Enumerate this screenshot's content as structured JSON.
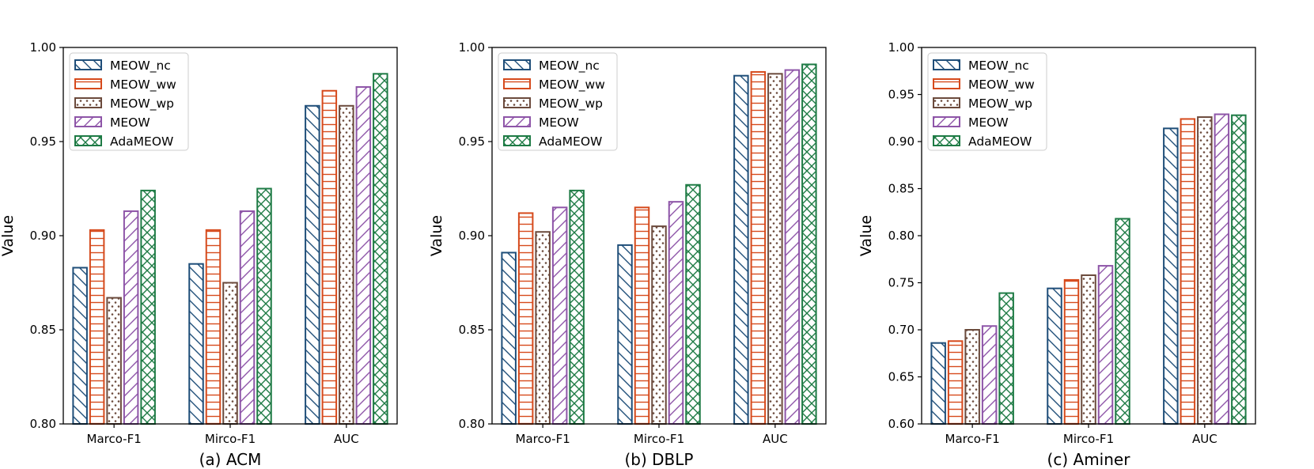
{
  "series_names": [
    "MEOW_nc",
    "MEOW_ww",
    "MEOW_wp",
    "MEOW",
    "AdaMEOW"
  ],
  "series_colors": [
    "#1f4e79",
    "#d64a1c",
    "#6b4a3c",
    "#8e55a8",
    "#1e7b45"
  ],
  "series_patterns": [
    "diag-back",
    "grid",
    "dots",
    "diag-fwd",
    "cross"
  ],
  "chart_data": [
    {
      "type": "bar",
      "title": "(a) ACM",
      "xlabel": "",
      "ylabel": "Value",
      "categories": [
        "Marco-F1",
        "Mirco-F1",
        "AUC"
      ],
      "ylim": [
        0.8,
        1.0
      ],
      "yticks": [
        "0.80",
        "0.85",
        "0.90",
        "0.95",
        "1.00"
      ],
      "ytick_values": [
        0.8,
        0.85,
        0.9,
        0.95,
        1.0
      ],
      "legend": "top-left",
      "series": [
        {
          "name": "MEOW_nc",
          "values": [
            0.883,
            0.885,
            0.969
          ]
        },
        {
          "name": "MEOW_ww",
          "values": [
            0.903,
            0.903,
            0.977
          ]
        },
        {
          "name": "MEOW_wp",
          "values": [
            0.867,
            0.875,
            0.969
          ]
        },
        {
          "name": "MEOW",
          "values": [
            0.913,
            0.913,
            0.979
          ]
        },
        {
          "name": "AdaMEOW",
          "values": [
            0.924,
            0.925,
            0.986
          ]
        }
      ]
    },
    {
      "type": "bar",
      "title": "(b) DBLP",
      "xlabel": "",
      "ylabel": "Value",
      "categories": [
        "Marco-F1",
        "Mirco-F1",
        "AUC"
      ],
      "ylim": [
        0.8,
        1.0
      ],
      "yticks": [
        "0.80",
        "0.85",
        "0.90",
        "0.95",
        "1.00"
      ],
      "ytick_values": [
        0.8,
        0.85,
        0.9,
        0.95,
        1.0
      ],
      "legend": "top-left",
      "series": [
        {
          "name": "MEOW_nc",
          "values": [
            0.891,
            0.895,
            0.985
          ]
        },
        {
          "name": "MEOW_ww",
          "values": [
            0.912,
            0.915,
            0.987
          ]
        },
        {
          "name": "MEOW_wp",
          "values": [
            0.902,
            0.905,
            0.986
          ]
        },
        {
          "name": "MEOW",
          "values": [
            0.915,
            0.918,
            0.988
          ]
        },
        {
          "name": "AdaMEOW",
          "values": [
            0.924,
            0.927,
            0.991
          ]
        }
      ]
    },
    {
      "type": "bar",
      "title": "(c) Aminer",
      "xlabel": "",
      "ylabel": "Value",
      "categories": [
        "Marco-F1",
        "Mirco-F1",
        "AUC"
      ],
      "ylim": [
        0.6,
        1.0
      ],
      "yticks": [
        "0.60",
        "0.65",
        "0.70",
        "0.75",
        "0.80",
        "0.85",
        "0.90",
        "0.95",
        "1.00"
      ],
      "ytick_values": [
        0.6,
        0.65,
        0.7,
        0.75,
        0.8,
        0.85,
        0.9,
        0.95,
        1.0
      ],
      "legend": "top-left",
      "series": [
        {
          "name": "MEOW_nc",
          "values": [
            0.686,
            0.744,
            0.914
          ]
        },
        {
          "name": "MEOW_ww",
          "values": [
            0.688,
            0.753,
            0.924
          ]
        },
        {
          "name": "MEOW_wp",
          "values": [
            0.7,
            0.758,
            0.926
          ]
        },
        {
          "name": "MEOW",
          "values": [
            0.704,
            0.768,
            0.929
          ]
        },
        {
          "name": "AdaMEOW",
          "values": [
            0.739,
            0.818,
            0.928
          ]
        }
      ]
    }
  ]
}
